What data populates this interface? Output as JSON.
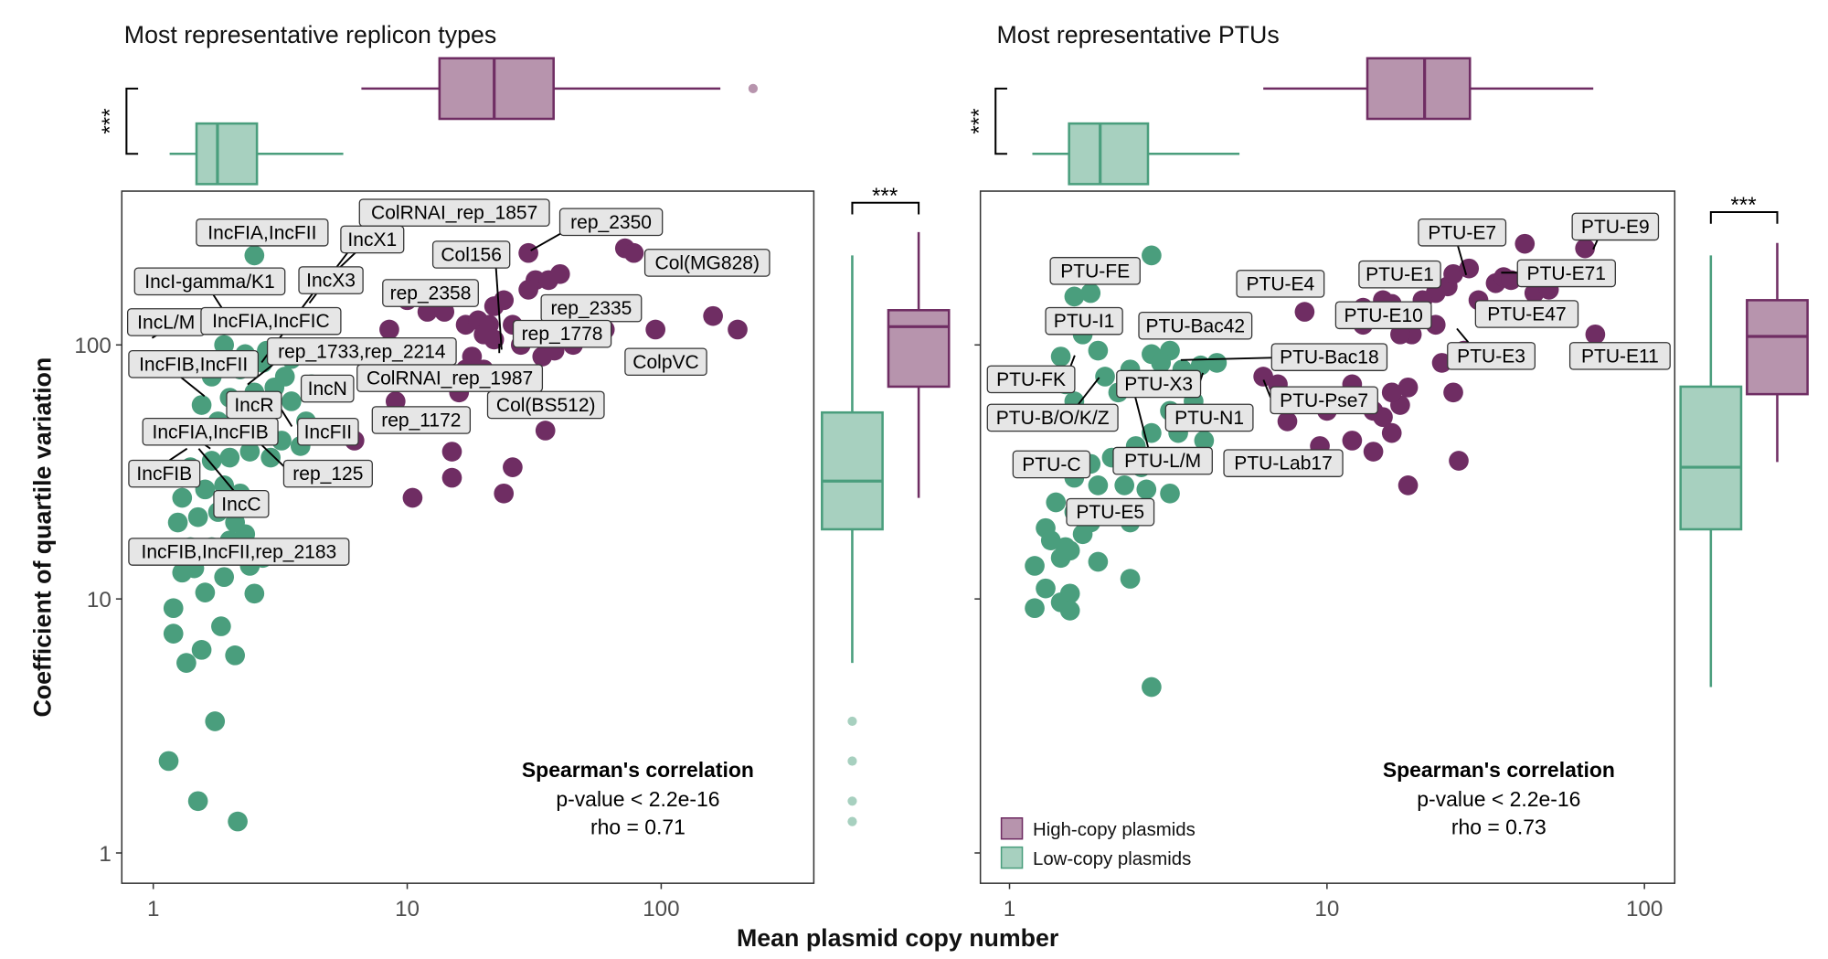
{
  "colors": {
    "high_copy": "#6f2d63",
    "high_copy_fill": "#b794ad",
    "low_copy": "#4a9e7d",
    "low_copy_fill": "#a7d0bf",
    "label_bg": "#e6e6e6"
  },
  "chart_data": [
    {
      "type": "scatter",
      "title": "Most representative replicon types",
      "xlabel": "Mean plasmid copy number",
      "ylabel": "Coefficient of quartile variation",
      "xscale": "log",
      "yscale": "log",
      "xlim": [
        0.8,
        300
      ],
      "ylim": [
        0.8,
        400
      ],
      "xticks": [
        "1",
        "10",
        "100"
      ],
      "yticks": [
        "1",
        "10",
        "100"
      ],
      "grid": false,
      "annotation": {
        "title": "Spearman's correlation",
        "pvalue": "p-value < 2.2e-16",
        "rho": "rho = 0.71"
      },
      "series": [
        {
          "name": "Low-copy plasmids",
          "points": [
            [
              2.5,
              225
            ],
            [
              1.2,
              9.2
            ],
            [
              1.2,
              7.3
            ],
            [
              1.35,
              5.6
            ],
            [
              1.55,
              6.3
            ],
            [
              2.1,
              6.0
            ],
            [
              1.85,
              7.8
            ],
            [
              1.75,
              3.3
            ],
            [
              1.15,
              2.3
            ],
            [
              1.5,
              1.6
            ],
            [
              2.15,
              1.33
            ],
            [
              2.5,
              10.5
            ],
            [
              1.6,
              10.6
            ],
            [
              1.3,
              12.7
            ],
            [
              1.45,
              13.2
            ],
            [
              1.9,
              12.2
            ],
            [
              2.4,
              13.5
            ],
            [
              2.7,
              14.5
            ],
            [
              1.2,
              15
            ],
            [
              1.4,
              16
            ],
            [
              1.7,
              16
            ],
            [
              2.0,
              17
            ],
            [
              2.3,
              18
            ],
            [
              1.25,
              20
            ],
            [
              1.5,
              21
            ],
            [
              1.8,
              22
            ],
            [
              2.1,
              20
            ],
            [
              1.3,
              25
            ],
            [
              1.6,
              27
            ],
            [
              1.9,
              28
            ],
            [
              2.2,
              26
            ],
            [
              2.6,
              24
            ],
            [
              1.4,
              33
            ],
            [
              1.7,
              35
            ],
            [
              2.0,
              36
            ],
            [
              2.4,
              38
            ],
            [
              2.9,
              36
            ],
            [
              1.5,
              45
            ],
            [
              1.8,
              50
            ],
            [
              2.2,
              48
            ],
            [
              2.6,
              45
            ],
            [
              3.2,
              42
            ],
            [
              1.55,
              58
            ],
            [
              2.0,
              62
            ],
            [
              2.5,
              65
            ],
            [
              3.0,
              68
            ],
            [
              3.5,
              60
            ],
            [
              1.7,
              75
            ],
            [
              2.2,
              80
            ],
            [
              2.7,
              85
            ],
            [
              3.3,
              75
            ],
            [
              1.9,
              100
            ],
            [
              2.3,
              92
            ],
            [
              2.8,
              95
            ],
            [
              3.5,
              88
            ],
            [
              4.2,
              70
            ],
            [
              2.9,
              55
            ],
            [
              4.0,
              50
            ],
            [
              3.8,
              40
            ]
          ]
        },
        {
          "name": "High-copy plasmids",
          "points": [
            [
              6.2,
              42
            ],
            [
              10.5,
              25
            ],
            [
              9.0,
              60
            ],
            [
              15,
              38
            ],
            [
              15,
              30
            ],
            [
              24,
              26
            ],
            [
              26,
              33
            ],
            [
              35,
              46
            ],
            [
              12,
              135
            ],
            [
              14,
              135
            ],
            [
              17,
              120
            ],
            [
              19,
              125
            ],
            [
              20,
              110
            ],
            [
              21,
              120
            ],
            [
              22,
              105
            ],
            [
              22,
              142
            ],
            [
              24,
              150
            ],
            [
              26,
              120
            ],
            [
              28,
              100
            ],
            [
              30,
              230
            ],
            [
              32,
              180
            ],
            [
              30,
              165
            ],
            [
              36,
              180
            ],
            [
              40,
              190
            ],
            [
              42,
              140
            ],
            [
              44,
              125
            ],
            [
              50,
              120
            ],
            [
              55,
              110
            ],
            [
              60,
              115
            ],
            [
              72,
              240
            ],
            [
              78,
              230
            ],
            [
              95,
              115
            ],
            [
              160,
              130
            ],
            [
              200,
              115
            ],
            [
              8.5,
              115
            ],
            [
              10,
              150
            ],
            [
              13,
              165
            ],
            [
              18,
              90
            ],
            [
              20,
              80
            ],
            [
              23,
              70
            ],
            [
              27,
              75
            ],
            [
              31,
              75
            ],
            [
              34,
              90
            ],
            [
              38,
              95
            ],
            [
              45,
              100
            ],
            [
              16,
              65
            ],
            [
              25,
              68
            ],
            [
              11,
              80
            ],
            [
              14,
              85
            ],
            [
              17,
              80
            ]
          ]
        }
      ],
      "labels": [
        "IncFIA,IncFII",
        "ColRNAI_rep_1857",
        "IncX1",
        "rep_2350",
        "Col156",
        "Col(MG828)",
        "IncI-gamma/K1",
        "IncX3",
        "rep_2358",
        "rep_2335",
        "IncL/M",
        "IncFIA,IncFIC",
        "rep_1778",
        "rep_1733,rep_2214",
        "ColpVC",
        "IncFIB,IncFII",
        "ColRNAI_rep_1987",
        "IncN",
        "IncR",
        "Col(BS512)",
        "rep_1172",
        "IncFIA,IncFIB",
        "IncFII",
        "IncFIB",
        "rep_125",
        "IncC",
        "IncFIB,IncFII,rep_2183"
      ],
      "top_boxplot_x": {
        "significance": "***",
        "low_copy": {
          "whisker_low": 1.16,
          "q1": 1.48,
          "median": 1.79,
          "q3": 2.56,
          "whisker_high": 5.6,
          "outliers": []
        },
        "high_copy": {
          "whisker_low": 6.6,
          "q1": 13.4,
          "median": 22.0,
          "q3": 37.7,
          "whisker_high": 171,
          "outliers": [
            230
          ]
        }
      },
      "side_boxplot_y": {
        "significance": "***",
        "low_copy": {
          "whisker_low": 5.6,
          "q1": 18.8,
          "median": 29.1,
          "q3": 54.2,
          "whisker_high": 225,
          "outliers": [
            3.3,
            2.3,
            1.6,
            1.33
          ]
        },
        "high_copy": {
          "whisker_low": 25.0,
          "q1": 68.5,
          "median": 118,
          "q3": 137,
          "whisker_high": 278,
          "outliers": []
        }
      }
    },
    {
      "type": "scatter",
      "title": "Most representative PTUs",
      "xlabel": "Mean plasmid copy number",
      "ylabel": "Coefficient of quartile variation",
      "xscale": "log",
      "yscale": "log",
      "xlim": [
        0.9,
        110
      ],
      "ylim": [
        0.8,
        400
      ],
      "xticks": [
        "1",
        "10",
        "100"
      ],
      "yticks": [
        "1",
        "10",
        "100"
      ],
      "grid": false,
      "legend": {
        "position": "bottom-left",
        "entries": [
          "High-copy plasmids",
          "Low-copy plasmids"
        ]
      },
      "annotation": {
        "title": "Spearman's correlation",
        "pvalue": "p-value < 2.2e-16",
        "rho": "rho = 0.73"
      },
      "series": [
        {
          "name": "Low-copy plasmids",
          "points": [
            [
              2.8,
              225
            ],
            [
              1.6,
              155
            ],
            [
              1.8,
              160
            ],
            [
              1.7,
              110
            ],
            [
              1.9,
              95
            ],
            [
              1.45,
              90
            ],
            [
              1.4,
              75
            ],
            [
              1.5,
              70
            ],
            [
              2.0,
              75
            ],
            [
              1.6,
              60
            ],
            [
              2.2,
              65
            ],
            [
              2.4,
              80
            ],
            [
              2.8,
              92
            ],
            [
              3.2,
              95
            ],
            [
              3.0,
              85
            ],
            [
              3.5,
              80
            ],
            [
              4.0,
              83
            ],
            [
              4.5,
              85
            ],
            [
              3.8,
              60
            ],
            [
              3.2,
              55
            ],
            [
              3.4,
              45
            ],
            [
              4.1,
              42
            ],
            [
              2.8,
              45
            ],
            [
              2.5,
              40
            ],
            [
              2.6,
              33
            ],
            [
              2.1,
              36
            ],
            [
              1.8,
              34
            ],
            [
              1.6,
              30
            ],
            [
              1.9,
              28
            ],
            [
              2.3,
              28
            ],
            [
              2.7,
              27
            ],
            [
              3.2,
              26
            ],
            [
              1.4,
              24
            ],
            [
              1.6,
              22
            ],
            [
              1.8,
              20
            ],
            [
              2.1,
              22
            ],
            [
              2.4,
              20
            ],
            [
              1.3,
              19
            ],
            [
              1.35,
              17
            ],
            [
              1.5,
              16
            ],
            [
              1.7,
              18
            ],
            [
              1.45,
              14.5
            ],
            [
              1.55,
              15.5
            ],
            [
              1.9,
              14
            ],
            [
              2.4,
              12
            ],
            [
              1.2,
              13.5
            ],
            [
              1.3,
              11
            ],
            [
              1.55,
              10.5
            ],
            [
              1.45,
              9.7
            ],
            [
              1.2,
              9.2
            ],
            [
              1.55,
              9.0
            ],
            [
              2.8,
              4.5
            ]
          ]
        },
        {
          "name": "High-copy plasmids",
          "points": [
            [
              6.3,
              75
            ],
            [
              7.0,
              70
            ],
            [
              7.5,
              50
            ],
            [
              8.0,
              60
            ],
            [
              10,
              55
            ],
            [
              11,
              60
            ],
            [
              12,
              70
            ],
            [
              13,
              62
            ],
            [
              14,
              55
            ],
            [
              15,
              52
            ],
            [
              16,
              45
            ],
            [
              17,
              58
            ],
            [
              16,
              65
            ],
            [
              18,
              68
            ],
            [
              12,
              130
            ],
            [
              13,
              140
            ],
            [
              15,
              150
            ],
            [
              16,
              145
            ],
            [
              18,
              130
            ],
            [
              18.5,
              110
            ],
            [
              17,
              110
            ],
            [
              22,
              120
            ],
            [
              22,
              160
            ],
            [
              20,
              150
            ],
            [
              24,
              170
            ],
            [
              25,
              190
            ],
            [
              28,
              200
            ],
            [
              30,
              150
            ],
            [
              34,
              175
            ],
            [
              36,
              185
            ],
            [
              38,
              180
            ],
            [
              45,
              160
            ],
            [
              42,
              250
            ],
            [
              50,
              165
            ],
            [
              65,
              240
            ],
            [
              70,
              110
            ],
            [
              9.5,
              40
            ],
            [
              12,
              42
            ],
            [
              14,
              38
            ],
            [
              18,
              28
            ],
            [
              26,
              35
            ],
            [
              25,
              65
            ],
            [
              23,
              85
            ],
            [
              27,
              95
            ],
            [
              8.5,
              135
            ],
            [
              13,
              120
            ]
          ]
        }
      ],
      "labels": [
        "PTU-E7",
        "PTU-E9",
        "PTU-FE",
        "PTU-E4",
        "PTU-E1",
        "PTU-E71",
        "PTU-I1",
        "PTU-Bac42",
        "PTU-E10",
        "PTU-E47",
        "PTU-Bac18",
        "PTU-E3",
        "PTU-E11",
        "PTU-FK",
        "PTU-X3",
        "PTU-Pse7",
        "PTU-B/O/K/Z",
        "PTU-N1",
        "PTU-C",
        "PTU-L/M",
        "PTU-Lab17",
        "PTU-E5"
      ],
      "top_boxplot_x": {
        "significance": "***",
        "low_copy": {
          "whisker_low": 1.18,
          "q1": 1.54,
          "median": 1.93,
          "q3": 2.73,
          "whisker_high": 5.3,
          "outliers": []
        },
        "high_copy": {
          "whisker_low": 6.3,
          "q1": 13.4,
          "median": 20.3,
          "q3": 28.2,
          "whisker_high": 69,
          "outliers": []
        }
      },
      "side_boxplot_y": {
        "significance": "***",
        "low_copy": {
          "whisker_low": 4.5,
          "q1": 18.8,
          "median": 33,
          "q3": 68.5,
          "whisker_high": 225,
          "outliers": []
        },
        "high_copy": {
          "whisker_low": 34.6,
          "q1": 64,
          "median": 108,
          "q3": 150,
          "whisker_high": 252,
          "outliers": []
        }
      }
    }
  ]
}
